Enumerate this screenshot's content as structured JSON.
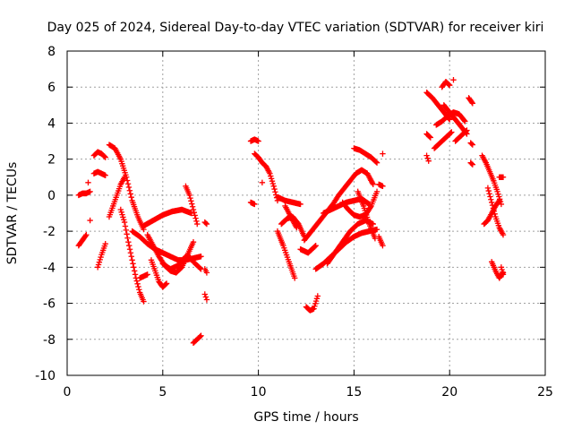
{
  "chart_data": {
    "type": "scatter",
    "title": "Day 025 of 2024, Sidereal Day-to-day VTEC variation (SDTVAR) for receiver kiri",
    "xlabel": "GPS time / hours",
    "ylabel": "SDTVAR / TECUs",
    "xlim": [
      0,
      25
    ],
    "ylim": [
      -10,
      8
    ],
    "xticks": [
      0,
      5,
      10,
      15,
      20,
      25
    ],
    "yticks": [
      -10,
      -8,
      -6,
      -4,
      -2,
      0,
      2,
      4,
      6,
      8
    ],
    "grid": true,
    "marker": "plus",
    "color": "#ff0000",
    "series": [
      {
        "segments": [
          {
            "x": [
              0.6,
              0.8,
              1.0,
              1.2
            ],
            "y": [
              0.0,
              0.1,
              0.1,
              0.2
            ]
          },
          {
            "x": [
              0.6,
              0.8,
              1.0
            ],
            "y": [
              -2.8,
              -2.5,
              -2.2
            ]
          },
          {
            "x": [
              1.1
            ],
            "y": [
              0.7
            ]
          },
          {
            "x": [
              1.2
            ],
            "y": [
              -1.4
            ]
          },
          {
            "x": [
              1.4,
              1.6,
              1.8,
              2.0
            ],
            "y": [
              1.2,
              1.3,
              1.2,
              1.1
            ]
          },
          {
            "x": [
              1.4,
              1.6,
              1.8,
              2.0
            ],
            "y": [
              2.2,
              2.4,
              2.3,
              2.1
            ]
          },
          {
            "x": [
              1.6,
              1.8,
              2.0
            ],
            "y": [
              -4.0,
              -3.3,
              -2.7
            ]
          },
          {
            "x": [
              2.2,
              2.5,
              2.8,
              3.1,
              3.4,
              3.7,
              4.0
            ],
            "y": [
              2.8,
              2.6,
              2.0,
              1.0,
              -0.3,
              -1.2,
              -1.9
            ]
          },
          {
            "x": [
              2.2,
              2.4,
              2.6,
              2.8,
              3.0
            ],
            "y": [
              -1.2,
              -0.6,
              0.0,
              0.6,
              1.0
            ]
          },
          {
            "x": [
              2.8,
              3.0,
              3.2,
              3.4,
              3.6,
              3.8,
              4.0
            ],
            "y": [
              -0.8,
              -1.5,
              -2.6,
              -3.6,
              -4.6,
              -5.4,
              -5.9
            ]
          },
          {
            "x": [
              3.4,
              3.8,
              4.2,
              4.6,
              5.0,
              5.4,
              5.8,
              6.2,
              6.6,
              7.0
            ],
            "y": [
              -2.0,
              -2.3,
              -2.7,
              -3.0,
              -3.2,
              -3.4,
              -3.6,
              -3.6,
              -3.5,
              -3.4
            ]
          },
          {
            "x": [
              3.8,
              4.0,
              4.2
            ],
            "y": [
              -4.6,
              -4.5,
              -4.4
            ]
          },
          {
            "x": [
              4.0,
              4.5,
              5.0,
              5.5,
              6.0,
              6.5
            ],
            "y": [
              -1.7,
              -1.4,
              -1.1,
              -0.9,
              -0.8,
              -1.0
            ]
          },
          {
            "x": [
              4.2,
              4.5,
              4.8,
              5.1,
              5.4,
              5.7,
              6.0,
              6.3,
              6.6
            ],
            "y": [
              -2.2,
              -2.8,
              -3.4,
              -3.9,
              -4.2,
              -4.3,
              -4.0,
              -3.3,
              -2.6
            ]
          },
          {
            "x": [
              4.4,
              4.6,
              4.8,
              5.0,
              5.2
            ],
            "y": [
              -3.6,
              -4.2,
              -4.8,
              -5.1,
              -4.9
            ]
          },
          {
            "x": [
              5.0,
              5.4,
              5.8,
              6.2
            ],
            "y": [
              -3.8,
              -4.1,
              -3.9,
              -3.4
            ]
          },
          {
            "x": [
              6.2,
              6.4,
              6.6,
              6.8
            ],
            "y": [
              0.5,
              0.0,
              -0.8,
              -1.6
            ]
          },
          {
            "x": [
              6.4,
              6.6,
              6.8,
              7.0
            ],
            "y": [
              -3.4,
              -3.7,
              -3.9,
              -4.1
            ]
          },
          {
            "x": [
              6.6,
              6.8,
              7.0
            ],
            "y": [
              -8.2,
              -8.0,
              -7.8
            ]
          },
          {
            "x": [
              7.2,
              7.3
            ],
            "y": [
              -1.5,
              -1.6
            ]
          },
          {
            "x": [
              7.2,
              7.3
            ],
            "y": [
              -4.1,
              -4.3
            ]
          },
          {
            "x": [
              7.2,
              7.3
            ],
            "y": [
              -5.5,
              -5.8
            ]
          },
          {
            "x": [
              9.6,
              9.8,
              10.0
            ],
            "y": [
              3.0,
              3.1,
              3.0
            ]
          },
          {
            "x": [
              9.6,
              9.8
            ],
            "y": [
              -0.4,
              -0.5
            ]
          },
          {
            "x": [
              9.8,
              10.0,
              10.2,
              10.4,
              10.6,
              10.8,
              11.0
            ],
            "y": [
              2.3,
              2.1,
              1.8,
              1.6,
              1.2,
              0.5,
              -0.3
            ]
          },
          {
            "x": [
              10.2
            ],
            "y": [
              0.7
            ]
          },
          {
            "x": [
              11.0,
              11.4,
              11.8,
              12.2
            ],
            "y": [
              -0.1,
              -0.3,
              -0.4,
              -0.5
            ]
          },
          {
            "x": [
              11.2,
              11.5,
              11.8,
              12.1,
              12.4
            ],
            "y": [
              -1.6,
              -1.3,
              -1.2,
              -1.6,
              -2.3
            ]
          },
          {
            "x": [
              11.0,
              11.3,
              11.6,
              11.9
            ],
            "y": [
              -2.0,
              -2.8,
              -3.7,
              -4.6
            ]
          },
          {
            "x": [
              11.4,
              11.7,
              12.0
            ],
            "y": [
              -0.6,
              -1.2,
              -1.8
            ]
          },
          {
            "x": [
              12.4,
              12.7,
              13.0,
              13.3,
              13.6,
              13.9,
              14.2,
              14.5,
              14.8,
              15.1,
              15.4,
              15.7,
              16.0
            ],
            "y": [
              -2.5,
              -2.1,
              -1.7,
              -1.3,
              -0.9,
              -0.5,
              0.0,
              0.4,
              0.8,
              1.2,
              1.4,
              1.2,
              0.6
            ]
          },
          {
            "x": [
              12.5,
              12.7,
              12.9,
              13.1
            ],
            "y": [
              -6.2,
              -6.4,
              -6.3,
              -5.6
            ]
          },
          {
            "x": [
              12.2,
              12.6,
              13.0
            ],
            "y": [
              -3.0,
              -3.2,
              -2.8
            ]
          },
          {
            "x": [
              13.0,
              13.4,
              13.8,
              14.2,
              14.6,
              15.0,
              15.4,
              15.8,
              16.2
            ],
            "y": [
              -4.1,
              -3.8,
              -3.4,
              -3.0,
              -2.6,
              -2.3,
              -2.1,
              -2.0,
              -1.9
            ]
          },
          {
            "x": [
              13.6,
              14.0,
              14.4,
              14.8,
              15.2,
              15.6,
              16.0
            ],
            "y": [
              -3.8,
              -3.2,
              -2.6,
              -2.0,
              -1.6,
              -1.4,
              -1.6
            ]
          },
          {
            "x": [
              13.4,
              13.8,
              14.2,
              14.6,
              15.0,
              15.4,
              15.8
            ],
            "y": [
              -1.0,
              -0.8,
              -0.6,
              -0.4,
              -0.3,
              -0.2,
              -0.5
            ]
          },
          {
            "x": [
              14.4,
              14.7,
              15.0,
              15.3,
              15.6,
              15.9,
              16.2
            ],
            "y": [
              -0.4,
              -0.8,
              -1.1,
              -1.2,
              -1.1,
              -0.6,
              0.2
            ]
          },
          {
            "x": [
              15.0,
              15.3,
              15.6,
              15.9,
              16.2
            ],
            "y": [
              2.6,
              2.5,
              2.3,
              2.1,
              1.8
            ]
          },
          {
            "x": [
              15.2,
              15.5,
              15.8,
              16.1
            ],
            "y": [
              0.2,
              -0.6,
              -1.6,
              -2.4
            ]
          },
          {
            "x": [
              16.3,
              16.5
            ],
            "y": [
              0.6,
              0.5
            ]
          },
          {
            "x": [
              16.3,
              16.5
            ],
            "y": [
              -2.3,
              -2.8
            ]
          },
          {
            "x": [
              16.5
            ],
            "y": [
              2.3
            ]
          },
          {
            "x": [
              18.8,
              18.9
            ],
            "y": [
              2.2,
              1.9
            ]
          },
          {
            "x": [
              18.8,
              19.0
            ],
            "y": [
              3.4,
              3.2
            ]
          },
          {
            "x": [
              18.8,
              19.1,
              19.4,
              19.7,
              20.0
            ],
            "y": [
              5.7,
              5.4,
              5.0,
              4.6,
              4.2
            ]
          },
          {
            "x": [
              19.2,
              19.5,
              19.8,
              20.1
            ],
            "y": [
              2.6,
              2.9,
              3.2,
              3.5
            ]
          },
          {
            "x": [
              19.3,
              19.6,
              19.9,
              20.2,
              20.5,
              20.8
            ],
            "y": [
              3.9,
              4.1,
              4.4,
              4.6,
              4.5,
              4.1
            ]
          },
          {
            "x": [
              19.6,
              19.8,
              20.0
            ],
            "y": [
              6.0,
              6.3,
              6.1
            ]
          },
          {
            "x": [
              20.2
            ],
            "y": [
              6.4
            ]
          },
          {
            "x": [
              19.7,
              20.0,
              20.3,
              20.6,
              20.9
            ],
            "y": [
              5.0,
              4.6,
              4.2,
              3.8,
              3.4
            ]
          },
          {
            "x": [
              20.3,
              20.5,
              20.7,
              20.9
            ],
            "y": [
              3.0,
              3.2,
              3.4,
              3.6
            ]
          },
          {
            "x": [
              21.0,
              21.2
            ],
            "y": [
              5.4,
              5.1
            ]
          },
          {
            "x": [
              21.1,
              21.2
            ],
            "y": [
              2.9,
              2.8
            ]
          },
          {
            "x": [
              21.1,
              21.2
            ],
            "y": [
              1.8,
              1.7
            ]
          },
          {
            "x": [
              21.7,
              21.9,
              22.1,
              22.3,
              22.5,
              22.7
            ],
            "y": [
              2.2,
              1.8,
              1.3,
              0.8,
              0.2,
              -0.5
            ]
          },
          {
            "x": [
              21.8,
              22.0,
              22.2,
              22.4,
              22.6
            ],
            "y": [
              -1.6,
              -1.4,
              -1.0,
              -0.6,
              -0.3
            ]
          },
          {
            "x": [
              22.0,
              22.2,
              22.4,
              22.6,
              22.8
            ],
            "y": [
              0.4,
              -0.4,
              -1.2,
              -1.8,
              -2.2
            ]
          },
          {
            "x": [
              22.2,
              22.4,
              22.6,
              22.8
            ],
            "y": [
              -3.7,
              -4.2,
              -4.6,
              -4.3
            ]
          },
          {
            "x": [
              22.6,
              22.8
            ],
            "y": [
              1.0,
              1.0
            ]
          },
          {
            "x": [
              22.7,
              22.8
            ],
            "y": [
              -4.0,
              -4.4
            ]
          }
        ]
      }
    ]
  }
}
